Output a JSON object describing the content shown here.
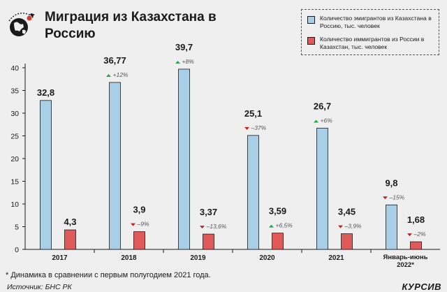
{
  "header": {
    "title": "Миграция из Казахстана в Россию"
  },
  "legend": {
    "items": [
      {
        "label": "Количество эмигрантов из Казахстана в Россию, тыс. человек",
        "color": "#a9cfe6"
      },
      {
        "label": "Количество иммигрантов из России в Казахстан, тыс. человек",
        "color": "#e05a5a"
      }
    ]
  },
  "chart_data": {
    "type": "bar",
    "categories": [
      "2017",
      "2018",
      "2019",
      "2020",
      "2021",
      "Январь-июнь 2022*"
    ],
    "series": [
      {
        "name": "Количество эмигрантов из Казахстана в Россию, тыс. человек",
        "color": "#a9cfe6",
        "values": [
          32.8,
          36.77,
          39.7,
          25.1,
          26.7,
          9.8
        ],
        "value_labels": [
          "32,8",
          "36,77",
          "39,7",
          "25,1",
          "26,7",
          "9,8"
        ],
        "changes": [
          "",
          "+12%",
          "+8%",
          "–37%",
          "+6%",
          "–15%"
        ],
        "change_direction": [
          "",
          "up",
          "up",
          "down",
          "up",
          "down"
        ]
      },
      {
        "name": "Количество иммигрантов из России в Казахстан, тыс. человек",
        "color": "#e05a5a",
        "values": [
          4.3,
          3.9,
          3.37,
          3.59,
          3.45,
          1.68
        ],
        "value_labels": [
          "4,3",
          "3,9",
          "3,37",
          "3,59",
          "3,45",
          "1,68"
        ],
        "changes": [
          "",
          "–9%",
          "–13,6%",
          "+6,5%",
          "–3,9%",
          "–2%"
        ],
        "change_direction": [
          "",
          "down",
          "down",
          "up",
          "down",
          "down"
        ]
      }
    ],
    "ylim": [
      0,
      40
    ],
    "yticks": [
      0,
      5,
      10,
      15,
      20,
      25,
      30,
      35,
      40
    ],
    "up_color": "#2aa24a",
    "down_color": "#c0201f"
  },
  "footer": {
    "footnote": "* Динамика в сравнении с первым полугодием 2021 года.",
    "source": "Источник: БНС РК",
    "brand": "КУРСИВ"
  }
}
